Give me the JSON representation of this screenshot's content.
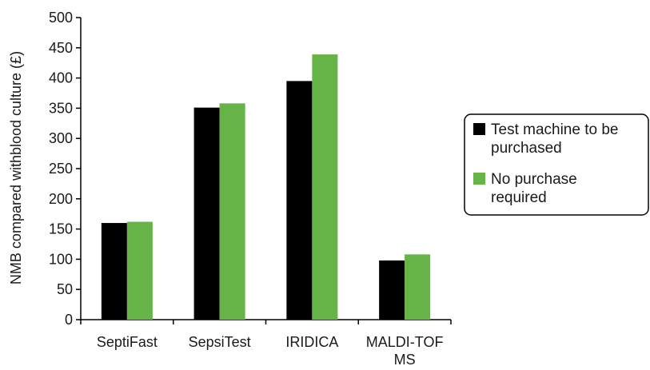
{
  "chart_data": {
    "type": "bar",
    "title": "",
    "xlabel": "",
    "ylabel": "NMB compared withblood culture (£)",
    "ylim": [
      0,
      500
    ],
    "y_ticks": [
      0,
      50,
      100,
      150,
      200,
      250,
      300,
      350,
      400,
      450,
      500
    ],
    "grid": false,
    "legend_position": "right",
    "categories": [
      [
        "SeptiFast"
      ],
      [
        "SepsiTest"
      ],
      [
        "IRIDICA"
      ],
      [
        "MALDI-TOF",
        "MS"
      ]
    ],
    "series": [
      {
        "name": [
          "Test machine to be",
          "purchased"
        ],
        "color": "#000000",
        "values": [
          160,
          351,
          395,
          98
        ]
      },
      {
        "name": [
          "No purchase",
          "required"
        ],
        "color": "#66b447",
        "values": [
          162,
          358,
          439,
          108
        ]
      }
    ]
  }
}
